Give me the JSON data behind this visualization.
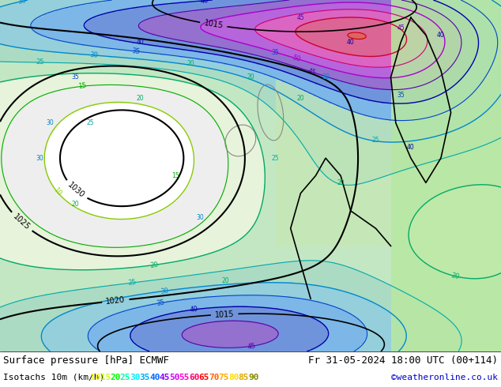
{
  "title_left": "Surface pressure [hPa] ECMWF",
  "title_right": "Fr 31-05-2024 18:00 UTC (00+114)",
  "subtitle_left": "Isotachs 10m (km/h)",
  "copyright": "©weatheronline.co.uk",
  "isotach_values": [
    10,
    15,
    20,
    25,
    30,
    35,
    40,
    45,
    50,
    55,
    60,
    65,
    70,
    75,
    80,
    85,
    90
  ],
  "isotach_legend_colors": [
    "#ffff00",
    "#c8ff00",
    "#00ff00",
    "#00ffaa",
    "#00eeff",
    "#00aaff",
    "#0066ff",
    "#8800ff",
    "#dd00ff",
    "#ff00cc",
    "#ff0066",
    "#ff0000",
    "#ff6600",
    "#ffaa00",
    "#ffdd00",
    "#ddaa00",
    "#888800"
  ],
  "bg_color": "#d8d8d8",
  "land_color_west": "#d8d8d8",
  "land_color_east": "#c8e8c0",
  "sea_color": "#d8d8d8",
  "text_color": "#000000",
  "font_size_title": 9,
  "font_size_legend": 8,
  "figsize": [
    6.34,
    4.9
  ],
  "dpi": 100,
  "pressure_labels": [
    "1020",
    "1020",
    "1025",
    "1030",
    "1025",
    "1020"
  ],
  "pressure_color": "#000000",
  "isotach_contour_colors": {
    "10": "#aadd00",
    "15": "#00cc00",
    "20": "#00bb88",
    "25": "#00cccc",
    "30": "#00aaee",
    "35": "#0066dd",
    "40": "#0000cc",
    "45": "#6600cc",
    "50": "#cc00dd",
    "55": "#ee0099",
    "60": "#ee0044",
    "65": "#ee0000",
    "70": "#ee6600",
    "75": "#eeaa00",
    "80": "#eedd00",
    "85": "#ccaa00",
    "90": "#887700"
  }
}
